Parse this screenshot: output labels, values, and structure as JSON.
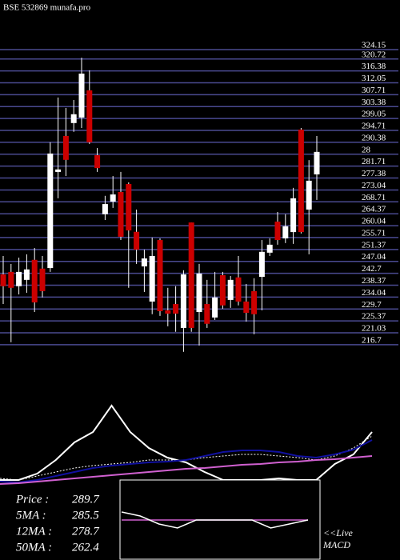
{
  "chart_data": [
    {
      "type": "candlestick",
      "title": "BSE 532869 munafa.pro",
      "ylim": [
        205.3,
        342.2
      ],
      "yticks": [
        324.15,
        320.72,
        316.38,
        312.05,
        307.71,
        303.38,
        299.05,
        294.71,
        290.38,
        {
          "value": 286.04,
          "label": "28"
        },
        281.71,
        277.38,
        273.04,
        268.71,
        264.37,
        260.04,
        255.71,
        251.37,
        247.04,
        242.7,
        238.37,
        234.04,
        229.7,
        225.37,
        221.03,
        216.7
      ],
      "grid": true,
      "up_color": "#ffffff",
      "down_color": "#cc0000",
      "grid_color": "#4a4a90",
      "open": [
        242.3,
        243.2,
        238.0,
        240.3,
        247.6,
        244.4,
        244.6,
        279.6,
        292.7,
        297.4,
        299.4,
        309.3,
        285.7,
        264.2,
        268.8,
        272.3,
        275.2,
        257.8,
        245.2,
        232.4,
        254.8,
        229.2,
        231.5,
        222.8,
        261.2,
        228.6,
        231.5,
        226.6,
        242.0,
        233.0,
        241.2,
        232.4,
        236.2,
        241.4,
        250.2,
        261.5,
        255.4,
        257.7,
        295.0,
        265.9,
        278.7
      ],
      "high": [
        249.0,
        246.1,
        248.4,
        249.6,
        251.9,
        249.0,
        290.4,
        306.7,
        302.9,
        305.8,
        321.2,
        316.6,
        288.3,
        270.9,
        278.1,
        279.6,
        275.8,
        265.9,
        251.3,
        255.7,
        255.4,
        237.4,
        238.0,
        243.8,
        261.2,
        246.1,
        240.3,
        243.2,
        243.2,
        241.7,
        249.0,
        238.8,
        240.9,
        254.8,
        255.4,
        265.0,
        264.2,
        273.8,
        295.6,
        283.9,
        292.7
      ],
      "low": [
        231.5,
        217.6,
        235.0,
        235.6,
        228.6,
        233.9,
        243.2,
        270.0,
        278.1,
        294.2,
        295.6,
        289.8,
        279.6,
        262.1,
        266.5,
        254.8,
        237.4,
        246.1,
        235.9,
        227.8,
        227.2,
        223.4,
        221.4,
        214.1,
        221.4,
        216.4,
        222.8,
        225.7,
        229.8,
        230.1,
        231.0,
        225.1,
        220.5,
        229.2,
        249.0,
        253.1,
        253.7,
        253.4,
        257.2,
        249.6,
        269.4
      ],
      "close": [
        238.0,
        237.4,
        243.2,
        244.1,
        232.1,
        236.2,
        286.3,
        280.5,
        284.0,
        300.6,
        315.4,
        290.4,
        281.0,
        267.9,
        271.4,
        256.0,
        258.3,
        251.3,
        248.1,
        249.0,
        228.9,
        228.0,
        228.0,
        242.3,
        222.8,
        242.6,
        224.3,
        233.9,
        231.0,
        240.3,
        232.4,
        228.3,
        227.8,
        250.5,
        253.1,
        254.8,
        259.8,
        270.0,
        257.7,
        276.4,
        286.9
      ],
      "summary": [
        {
          "label": "Price :",
          "value": "289.7"
        },
        {
          "label": "5MA :",
          "value": "285.5"
        },
        {
          "label": "12MA :",
          "value": "278.7"
        },
        {
          "label": "50MA :",
          "value": "262.4"
        }
      ]
    },
    {
      "type": "line",
      "ylim": [
        212.6,
        325.4
      ],
      "series": [
        {
          "color": "#ffffff",
          "dash": false,
          "values": [
            226.7,
            226.7,
            234.2,
            250.2,
            270.9,
            283.1,
            314.1,
            283.1,
            264.3,
            253.0,
            247.4,
            236.1,
            226.7,
            226.7,
            226.7,
            228.6,
            226.7,
            226.7,
            245.5,
            256.8,
            283.1
          ]
        },
        {
          "color": "#ffffff",
          "dash": true,
          "values": [
            228.6,
            226.7,
            231.4,
            236.1,
            240.8,
            243.6,
            245.5,
            247.4,
            250.2,
            250.2,
            250.2,
            253.0,
            254.9,
            256.8,
            256.8,
            254.9,
            253.0,
            250.2,
            254.9,
            264.3,
            278.4
          ]
        },
        {
          "color": "#1010a0",
          "dash": false,
          "values": [
            224.8,
            223.9,
            226.7,
            231.4,
            236.1,
            240.8,
            243.6,
            245.5,
            247.4,
            248.3,
            250.2,
            254.9,
            259.6,
            261.5,
            261.5,
            259.6,
            254.9,
            253.0,
            256.8,
            262.4,
            273.7
          ]
        },
        {
          "color": "#d060d0",
          "dash": false,
          "values": [
            222.0,
            222.9,
            224.8,
            226.7,
            228.6,
            230.5,
            232.3,
            234.2,
            236.1,
            238.0,
            239.9,
            240.8,
            242.7,
            244.6,
            245.5,
            247.4,
            248.3,
            250.2,
            251.1,
            253.0,
            254.9
          ]
        }
      ]
    },
    {
      "type": "macd",
      "title_lines": [
        "<<Live",
        "MACD"
      ],
      "ylim": [
        -10,
        10
      ],
      "series": [
        {
          "color": "#ffffff",
          "values": [
            2,
            1,
            -1,
            -2,
            0,
            0,
            0,
            0,
            -2,
            -1,
            0
          ]
        },
        {
          "color": "#d060d0",
          "values": [
            0,
            0,
            0,
            0,
            0,
            0,
            0,
            0,
            0,
            0,
            0
          ]
        }
      ]
    }
  ]
}
